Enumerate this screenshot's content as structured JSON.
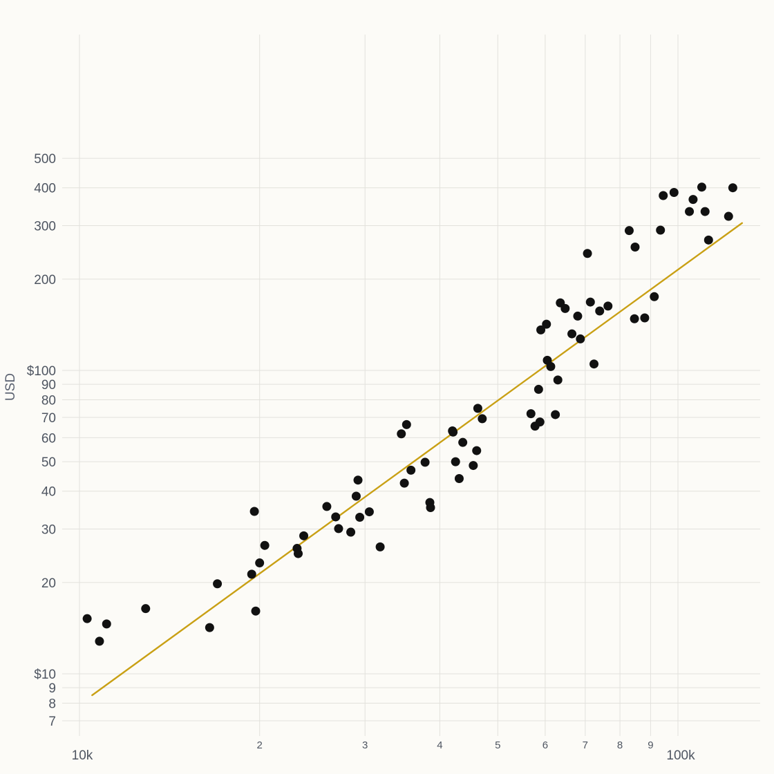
{
  "chart_data": {
    "type": "scatter",
    "title": "",
    "xlabel": "",
    "ylabel": "USD",
    "x_scale": "log",
    "y_scale": "log",
    "xlim": [
      9200,
      135000
    ],
    "ylim": [
      6.7,
      560
    ],
    "grid": true,
    "legend": "none",
    "colors": {
      "points": "#111111",
      "trend": "#c9a014",
      "grid": "#e2e1dc",
      "text": "#4e5561",
      "background": "#fcfbf7"
    },
    "x_ticks": [
      {
        "value": 10000,
        "label": "10k",
        "major": true
      },
      {
        "value": 20000,
        "label": "2",
        "major": false
      },
      {
        "value": 30000,
        "label": "3",
        "major": false
      },
      {
        "value": 40000,
        "label": "4",
        "major": false
      },
      {
        "value": 50000,
        "label": "5",
        "major": false
      },
      {
        "value": 60000,
        "label": "6",
        "major": false
      },
      {
        "value": 70000,
        "label": "7",
        "major": false
      },
      {
        "value": 80000,
        "label": "8",
        "major": false
      },
      {
        "value": 90000,
        "label": "9",
        "major": false
      },
      {
        "value": 100000,
        "label": "100k",
        "major": true
      }
    ],
    "y_ticks": [
      {
        "value": 7,
        "label": "7"
      },
      {
        "value": 8,
        "label": "8"
      },
      {
        "value": 9,
        "label": "9"
      },
      {
        "value": 10,
        "label": "$10"
      },
      {
        "value": 20,
        "label": "20"
      },
      {
        "value": 30,
        "label": "30"
      },
      {
        "value": 40,
        "label": "40"
      },
      {
        "value": 50,
        "label": "50"
      },
      {
        "value": 60,
        "label": "60"
      },
      {
        "value": 70,
        "label": "70"
      },
      {
        "value": 80,
        "label": "80"
      },
      {
        "value": 90,
        "label": "90"
      },
      {
        "value": 100,
        "label": "$100"
      },
      {
        "value": 200,
        "label": "200"
      },
      {
        "value": 300,
        "label": "300"
      },
      {
        "value": 400,
        "label": "400"
      },
      {
        "value": 500,
        "label": "500"
      }
    ],
    "trend_line": {
      "x": [
        10500,
        128000
      ],
      "y": [
        8.5,
        306
      ]
    },
    "points": [
      {
        "x": 10300,
        "y": 15.2
      },
      {
        "x": 10800,
        "y": 12.8
      },
      {
        "x": 11100,
        "y": 14.6
      },
      {
        "x": 12900,
        "y": 16.4
      },
      {
        "x": 16500,
        "y": 14.2
      },
      {
        "x": 17000,
        "y": 19.8
      },
      {
        "x": 19400,
        "y": 21.3
      },
      {
        "x": 19600,
        "y": 34.3
      },
      {
        "x": 19700,
        "y": 16.1
      },
      {
        "x": 20000,
        "y": 23.2
      },
      {
        "x": 20400,
        "y": 26.5
      },
      {
        "x": 23100,
        "y": 25.9
      },
      {
        "x": 23200,
        "y": 24.9
      },
      {
        "x": 23700,
        "y": 28.5
      },
      {
        "x": 25900,
        "y": 35.6
      },
      {
        "x": 26800,
        "y": 32.9
      },
      {
        "x": 27100,
        "y": 30.1
      },
      {
        "x": 28400,
        "y": 29.3
      },
      {
        "x": 29000,
        "y": 38.5
      },
      {
        "x": 29200,
        "y": 43.5
      },
      {
        "x": 29400,
        "y": 32.8
      },
      {
        "x": 30500,
        "y": 34.2
      },
      {
        "x": 31800,
        "y": 26.2
      },
      {
        "x": 34500,
        "y": 61.8
      },
      {
        "x": 34900,
        "y": 42.5
      },
      {
        "x": 35200,
        "y": 66.3
      },
      {
        "x": 35800,
        "y": 46.9
      },
      {
        "x": 37800,
        "y": 49.8
      },
      {
        "x": 38500,
        "y": 36.7
      },
      {
        "x": 38600,
        "y": 35.3
      },
      {
        "x": 42000,
        "y": 63.2
      },
      {
        "x": 42100,
        "y": 62.6
      },
      {
        "x": 42500,
        "y": 50.0
      },
      {
        "x": 43100,
        "y": 44.0
      },
      {
        "x": 43700,
        "y": 57.9
      },
      {
        "x": 45500,
        "y": 48.6
      },
      {
        "x": 46100,
        "y": 54.4
      },
      {
        "x": 46300,
        "y": 75.0
      },
      {
        "x": 47100,
        "y": 69.3
      },
      {
        "x": 56800,
        "y": 72.0
      },
      {
        "x": 57700,
        "y": 65.5
      },
      {
        "x": 58500,
        "y": 86.6
      },
      {
        "x": 58800,
        "y": 67.6
      },
      {
        "x": 59000,
        "y": 136.0
      },
      {
        "x": 60300,
        "y": 142.0
      },
      {
        "x": 60500,
        "y": 108.0
      },
      {
        "x": 61300,
        "y": 103.0
      },
      {
        "x": 62400,
        "y": 71.5
      },
      {
        "x": 63000,
        "y": 93.0
      },
      {
        "x": 63600,
        "y": 167.0
      },
      {
        "x": 64800,
        "y": 160.0
      },
      {
        "x": 66500,
        "y": 132.0
      },
      {
        "x": 68000,
        "y": 151.0
      },
      {
        "x": 68700,
        "y": 127.0
      },
      {
        "x": 70600,
        "y": 243.0
      },
      {
        "x": 71400,
        "y": 168.0
      },
      {
        "x": 72400,
        "y": 105.0
      },
      {
        "x": 74000,
        "y": 157.0
      },
      {
        "x": 76400,
        "y": 163.0
      },
      {
        "x": 82900,
        "y": 289.0
      },
      {
        "x": 84600,
        "y": 148.0
      },
      {
        "x": 84800,
        "y": 255.0
      },
      {
        "x": 88000,
        "y": 149.0
      },
      {
        "x": 91300,
        "y": 175.0
      },
      {
        "x": 93500,
        "y": 290.0
      },
      {
        "x": 94500,
        "y": 377.0
      },
      {
        "x": 98500,
        "y": 386.0
      },
      {
        "x": 104500,
        "y": 334.0
      },
      {
        "x": 106000,
        "y": 366.0
      },
      {
        "x": 109600,
        "y": 402.0
      },
      {
        "x": 111000,
        "y": 334.0
      },
      {
        "x": 112500,
        "y": 269.0
      },
      {
        "x": 121500,
        "y": 322.0
      },
      {
        "x": 123500,
        "y": 400.0
      }
    ]
  }
}
